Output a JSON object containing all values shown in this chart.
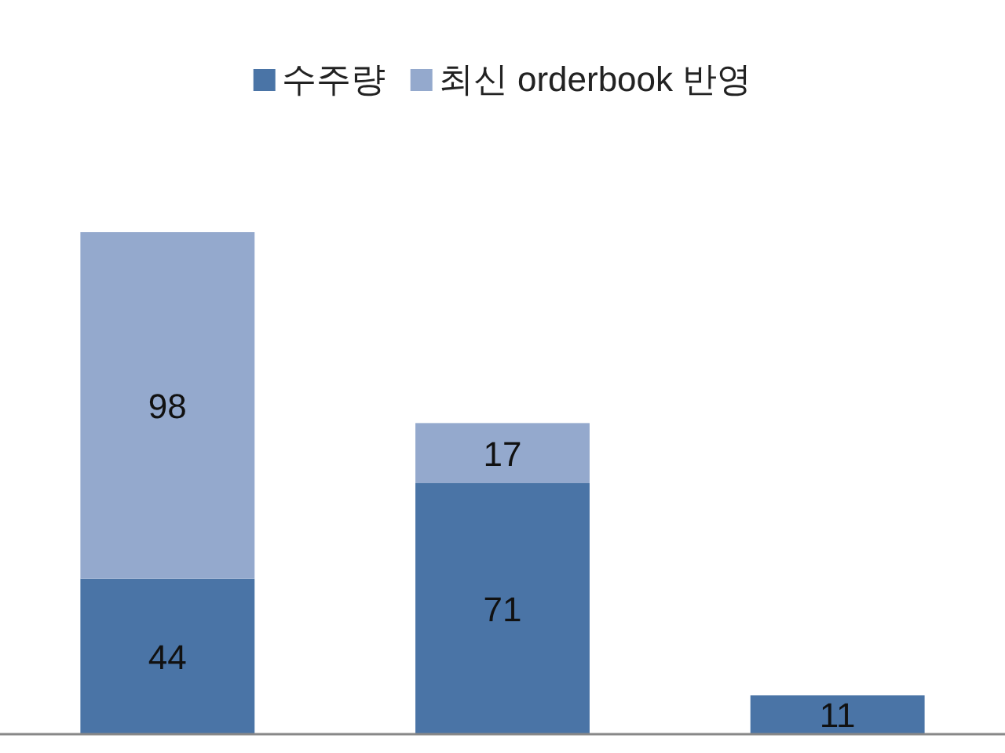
{
  "chart_data": {
    "type": "bar",
    "stacked": true,
    "data_labels": true,
    "legend": "top",
    "categories": [
      null,
      null,
      null
    ],
    "series": [
      {
        "name": "수주량",
        "color": "#4a74a6",
        "values": [
          44,
          71,
          11
        ]
      },
      {
        "name": "최신 orderbook 반영",
        "color": "#94a9cd",
        "values": [
          98,
          17,
          null
        ]
      }
    ]
  }
}
